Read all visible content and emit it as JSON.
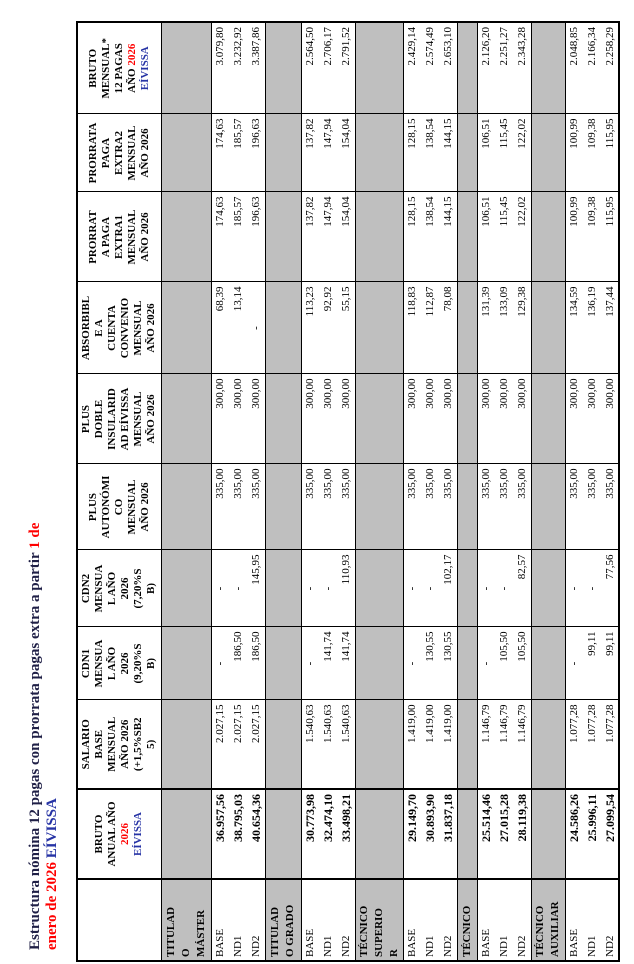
{
  "title": {
    "part1": "Estructura nómina 12 pagas con prorrata pagas extra a partir ",
    "part1_highlight": "1 de",
    "part2_highlight": "enero de 2026 ",
    "part2_brand": "EÍVISSA"
  },
  "colors": {
    "title_ink": "#1F1F46",
    "highlight_red": "#FF0000",
    "brand_blue": "#2633A5",
    "header_ink": "#000000",
    "group_row_bg": "#BFBFBF",
    "grid_border": "#000000",
    "watermark_gray": "#EDEDED"
  },
  "table": {
    "columns": [
      {
        "id": "categoria",
        "header_lines": []
      },
      {
        "id": "bruto-anual",
        "header_lines": [
          [
            {
              "t": "BRUTO"
            }
          ],
          [
            {
              "t": "ANUAL AÑO"
            }
          ],
          [
            {
              "t": "2026",
              "c": "red"
            }
          ],
          [
            {
              "t": "EÍVISSA",
              "c": "blue"
            }
          ]
        ]
      },
      {
        "id": "salario-base",
        "header_lines": [
          [
            {
              "t": "SALARIO"
            }
          ],
          [
            {
              "t": "BASE"
            }
          ],
          [
            {
              "t": "MENSUAL"
            }
          ],
          [
            {
              "t": "AÑO 2026"
            }
          ],
          [
            {
              "t": "(+1,5%SB2"
            }
          ],
          [
            {
              "t": "5)"
            }
          ]
        ]
      },
      {
        "id": "cdn1",
        "header_lines": [
          [
            {
              "t": "CDN1"
            }
          ],
          [
            {
              "t": "MENSUA"
            }
          ],
          [
            {
              "t": "L AÑO"
            }
          ],
          [
            {
              "t": "2026"
            }
          ],
          [
            {
              "t": "(9,20%S"
            }
          ],
          [
            {
              "t": "B)"
            }
          ]
        ]
      },
      {
        "id": "cdn2",
        "header_lines": [
          [
            {
              "t": "CDN2"
            }
          ],
          [
            {
              "t": "MENSUA"
            }
          ],
          [
            {
              "t": "L AÑO"
            }
          ],
          [
            {
              "t": "2026"
            }
          ],
          [
            {
              "t": "(7,20%S"
            }
          ],
          [
            {
              "t": "B)"
            }
          ]
        ]
      },
      {
        "id": "plus-autonomico",
        "header_lines": [
          [
            {
              "t": "PLUS"
            }
          ],
          [
            {
              "t": "AUTONÓMI"
            }
          ],
          [
            {
              "t": "CO"
            }
          ],
          [
            {
              "t": "MENSUAL"
            }
          ],
          [
            {
              "t": "AÑO 2026"
            }
          ]
        ]
      },
      {
        "id": "plus-doble-insularidad",
        "header_lines": [
          [
            {
              "t": "PLUS"
            }
          ],
          [
            {
              "t": "DOBLE"
            }
          ],
          [
            {
              "t": "INSULARID"
            }
          ],
          [
            {
              "t": "AD EÍVISSA"
            }
          ],
          [
            {
              "t": "MENSUAL"
            }
          ],
          [
            {
              "t": "AÑO 2026"
            }
          ]
        ]
      },
      {
        "id": "absorbible",
        "header_lines": [
          [
            {
              "t": "ABSORBIBL"
            }
          ],
          [
            {
              "t": "E A"
            }
          ],
          [
            {
              "t": "CUENTA"
            }
          ],
          [
            {
              "t": "CONVENIO"
            }
          ],
          [
            {
              "t": "MENSUAL"
            }
          ],
          [
            {
              "t": "AÑO 2026"
            }
          ]
        ]
      },
      {
        "id": "prorrata-extra1",
        "header_lines": [
          [
            {
              "t": "PRORRAT"
            }
          ],
          [
            {
              "t": "A PAGA"
            }
          ],
          [
            {
              "t": "EXTRA1"
            }
          ],
          [
            {
              "t": "MENSUAL"
            }
          ],
          [
            {
              "t": "AÑO 2026"
            }
          ]
        ]
      },
      {
        "id": "prorrata-extra2",
        "header_lines": [
          [
            {
              "t": "PRORRATA"
            }
          ],
          [
            {
              "t": "PAGA"
            }
          ],
          [
            {
              "t": "EXTRA2"
            }
          ],
          [
            {
              "t": "MENSUAL"
            }
          ],
          [
            {
              "t": "AÑO 2026"
            }
          ]
        ]
      },
      {
        "id": "bruto-mensual",
        "header_lines": [
          [
            {
              "t": "BRUTO"
            }
          ],
          [
            {
              "t": "MENSUAL*"
            }
          ],
          [
            {
              "t": "12 PAGAS"
            }
          ],
          [
            {
              "t": "AÑO ",
              "c": null
            },
            {
              "t": "2026",
              "c": "red"
            }
          ],
          [
            {
              "t": "EÍVISSA",
              "c": "blue"
            }
          ]
        ]
      }
    ],
    "groups": [
      {
        "label": "TITULAD\nO\nMÁSTER",
        "rows": [
          {
            "label": "BASE",
            "values": [
              "36.957,56",
              "2.027,15",
              "-",
              "-",
              "335,00",
              "300,00",
              "68,39",
              "174,63",
              "174,63",
              "3.079,80"
            ]
          },
          {
            "label": "ND1",
            "values": [
              "38.795,03",
              "2.027,15",
              "186,50",
              "-",
              "335,00",
              "300,00",
              "13,14",
              "185,57",
              "185,57",
              "3.232,92"
            ]
          },
          {
            "label": "ND2",
            "values": [
              "40.654,36",
              "2.027,15",
              "186,50",
              "145,95",
              "335,00",
              "300,00",
              "-",
              "196,63",
              "196,63",
              "3.387,86"
            ]
          }
        ]
      },
      {
        "label": "TITULAD\nO GRADO",
        "rows": [
          {
            "label": "BASE",
            "values": [
              "30.773,98",
              "1.540,63",
              "-",
              "-",
              "335,00",
              "300,00",
              "113,23",
              "137,82",
              "137,82",
              "2.564,50"
            ]
          },
          {
            "label": "ND1",
            "values": [
              "32.474,10",
              "1.540,63",
              "141,74",
              "-",
              "335,00",
              "300,00",
              "92,92",
              "147,94",
              "147,94",
              "2.706,17"
            ]
          },
          {
            "label": "ND2",
            "values": [
              "33.498,21",
              "1.540,63",
              "141,74",
              "110,93",
              "335,00",
              "300,00",
              "55,15",
              "154,04",
              "154,04",
              "2.791,52"
            ]
          }
        ]
      },
      {
        "label": "TÉCNICO\nSUPERIO\nR",
        "rows": [
          {
            "label": "BASE",
            "values": [
              "29.149,70",
              "1.419,00",
              "-",
              "-",
              "335,00",
              "300,00",
              "118,83",
              "128,15",
              "128,15",
              "2.429,14"
            ]
          },
          {
            "label": "ND1",
            "values": [
              "30.893,90",
              "1.419,00",
              "130,55",
              "-",
              "335,00",
              "300,00",
              "112,87",
              "138,54",
              "138,54",
              "2.574,49"
            ]
          },
          {
            "label": "ND2",
            "values": [
              "31.837,18",
              "1.419,00",
              "130,55",
              "102,17",
              "335,00",
              "300,00",
              "78,08",
              "144,15",
              "144,15",
              "2.653,10"
            ]
          }
        ]
      },
      {
        "label": "TÉCNICO",
        "rows": [
          {
            "label": "BASE",
            "values": [
              "25.514,46",
              "1.146,79",
              "-",
              "-",
              "335,00",
              "300,00",
              "131,39",
              "106,51",
              "106,51",
              "2.126,20"
            ]
          },
          {
            "label": "ND1",
            "values": [
              "27.015,28",
              "1.146,79",
              "105,50",
              "-",
              "335,00",
              "300,00",
              "133,09",
              "115,45",
              "115,45",
              "2.251,27"
            ]
          },
          {
            "label": "ND2",
            "values": [
              "28.119,38",
              "1.146,79",
              "105,50",
              "82,57",
              "335,00",
              "300,00",
              "129,38",
              "122,02",
              "122,02",
              "2.343,28"
            ]
          }
        ]
      },
      {
        "label": "TÉCNICO\nAUXILIAR",
        "rows": [
          {
            "label": "BASE",
            "values": [
              "24.586,26",
              "1.077,28",
              "-",
              "-",
              "335,00",
              "300,00",
              "134,59",
              "100,99",
              "100,99",
              "2.048,85"
            ]
          },
          {
            "label": "ND1",
            "values": [
              "25.996,11",
              "1.077,28",
              "99,11",
              "-",
              "335,00",
              "300,00",
              "136,19",
              "109,38",
              "109,38",
              "2.166,34"
            ]
          },
          {
            "label": "ND2",
            "values": [
              "27.099,54",
              "1.077,28",
              "99,11",
              "77,56",
              "335,00",
              "300,00",
              "137,44",
              "115,95",
              "115,95",
              "2.258,29"
            ]
          }
        ]
      }
    ]
  }
}
